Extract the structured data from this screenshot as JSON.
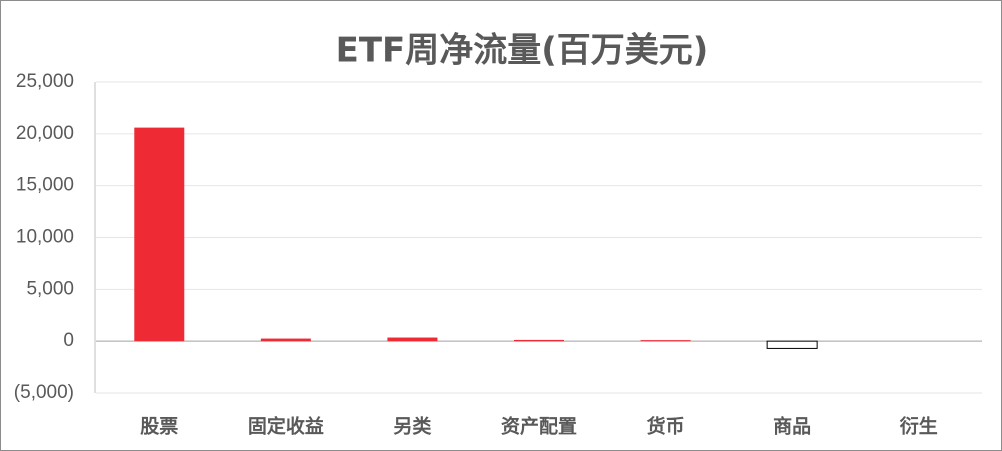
{
  "chart_data": {
    "type": "bar",
    "title": "ETF周净流量(百万美元)",
    "categories": [
      "股票",
      "固定收益",
      "另类",
      "资产配置",
      "货币",
      "商品",
      "衍生"
    ],
    "values": [
      20600,
      250,
      350,
      120,
      100,
      -700,
      0
    ],
    "color": "#ee2a35",
    "negative_color": "#ffffff",
    "negative_tick_color": "#ff0000",
    "ylim": [
      -5000,
      25000
    ],
    "yticks": [
      {
        "value": -5000,
        "label": "(5,000)"
      },
      0,
      {
        "value": 5000,
        "label": "5,000"
      },
      {
        "value": 10000,
        "label": "10,000"
      },
      {
        "value": 15000,
        "label": "15,000"
      },
      {
        "value": 20000,
        "label": "20,000"
      },
      {
        "value": 25000,
        "label": "25,000"
      }
    ],
    "grid": true
  }
}
